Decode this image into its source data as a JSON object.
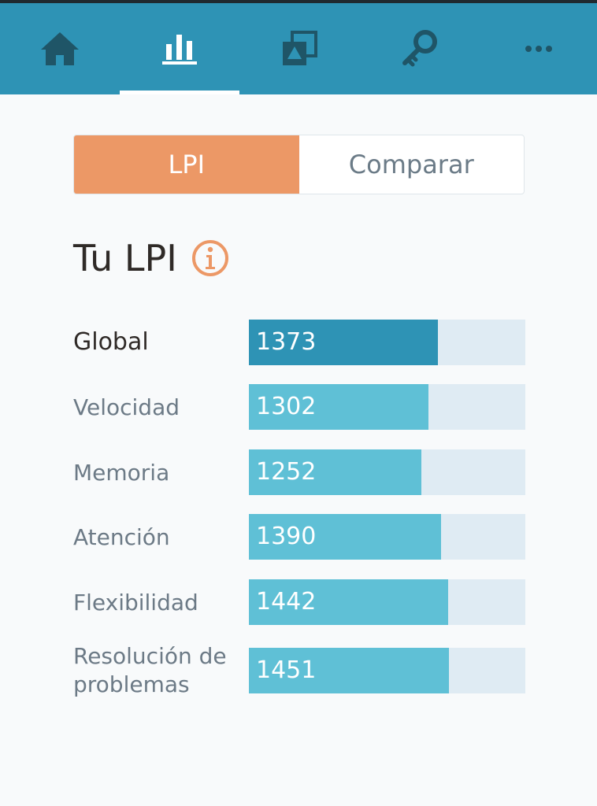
{
  "nav": {
    "items": [
      {
        "name": "home-icon"
      },
      {
        "name": "stats-icon",
        "active": true
      },
      {
        "name": "games-icon"
      },
      {
        "name": "key-icon"
      },
      {
        "name": "more-icon"
      }
    ],
    "colors": {
      "bar": "#2e93b5",
      "icon": "#1f5567",
      "active_icon": "#ffffff"
    }
  },
  "tabs": {
    "lpi_label": "LPI",
    "compare_label": "Comparar",
    "active": "LPI",
    "active_color": "#ec9866"
  },
  "heading": {
    "title": "Tu LPI",
    "info_icon": "info-icon",
    "info_color": "#ec9866"
  },
  "scores": {
    "global": {
      "label": "Global",
      "value": "1373",
      "fill": 0.685
    },
    "velocidad": {
      "label": "Velocidad",
      "value": "1302",
      "fill": 0.65
    },
    "memoria": {
      "label": "Memoria",
      "value": "1252",
      "fill": 0.625
    },
    "atencion": {
      "label": "Atención",
      "value": "1390",
      "fill": 0.695
    },
    "flexibilidad": {
      "label": "Flexibilidad",
      "value": "1442",
      "fill": 0.72
    },
    "resolucion": {
      "label": "Resolución de problemas",
      "value": "1451",
      "fill": 0.725
    },
    "colors": {
      "global": "#2e93b5",
      "area": "#5fc0d6",
      "track": "#dfebf3"
    }
  }
}
